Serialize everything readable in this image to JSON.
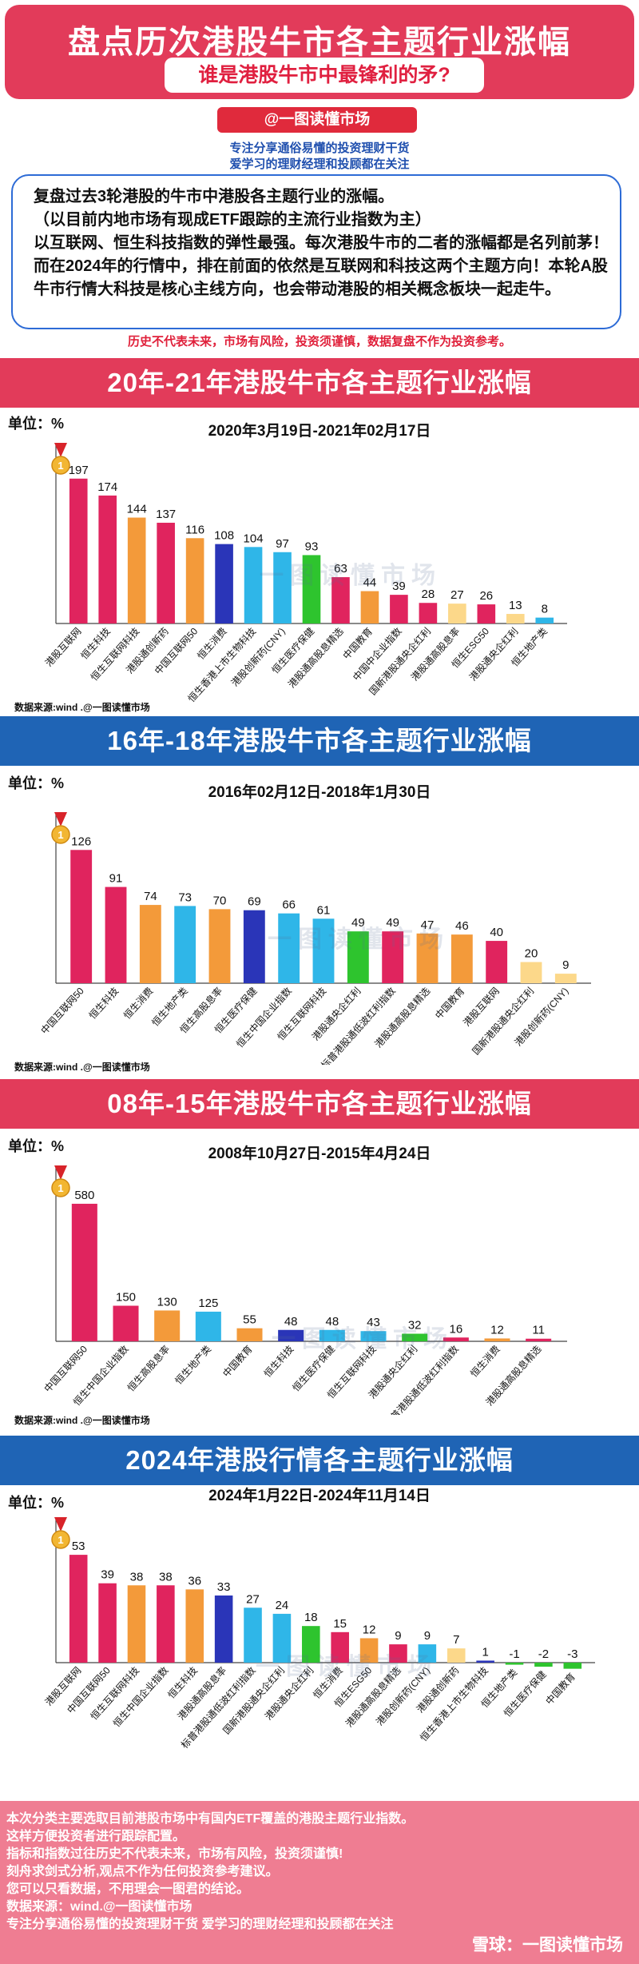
{
  "header": {
    "title": "盘点历次港股牛市各主题行业涨幅",
    "subtitle": "谁是港股牛市中最锋利的矛?"
  },
  "handle": "@一图读懂市场",
  "taglines": [
    "专注分享通俗易懂的投资理财干货",
    "爱学习的理财经理和投顾都在关注"
  ],
  "intro": [
    "复盘过去3轮港股的牛市中港股各主题行业的涨幅。",
    "（以目前内地市场有现成ETF跟踪的主流行业指数为主）",
    "以互联网、恒生科技指数的弹性最强。每次港股牛市的二者的涨幅都是名列前茅！ 而在2024年的行情中，排在前面的依然是互联网和科技这两个主题方向！本轮A股牛市行情大科技是核心主线方向，也会带动港股的相关概念板块一起走牛。"
  ],
  "disclaimer": "历史不代表未来，市场有风险，投资须谨慎，数据复盘不作为投资参考。",
  "watermark_text": "一图读懂市场",
  "medal_number": "1",
  "sections": [
    {
      "title": "20年-21年港股牛市各主题行业涨幅",
      "unit": "单位：%",
      "dates": "2020年3月19日-2021年02月17日",
      "source": "数据来源:wind .@一图读懂市场"
    },
    {
      "title": "16年-18年港股牛市各主题行业涨幅",
      "unit": "单位：%",
      "dates": "2016年02月12日-2018年1月30日",
      "source": "数据来源:wind .@一图读懂市场"
    },
    {
      "title": "08年-15年港股牛市各主题行业涨幅",
      "unit": "单位：%",
      "dates": "2008年10月27日-2015年4月24日",
      "source": "数据来源:wind .@一图读懂市场"
    },
    {
      "title": "2024年港股行情各主题行业涨幅",
      "unit": "单位：%",
      "dates": "2024年1月22日-2024年11月14日",
      "source": ""
    }
  ],
  "chart_data": [
    {
      "type": "bar",
      "title": "20年-21年港股牛市各主题行业涨幅",
      "ylabel": "单位：%",
      "ylim": [
        0,
        200
      ],
      "categories": [
        "港股互联网",
        "恒生科技",
        "恒生互联网科技",
        "港股通创新药",
        "中国互联网50",
        "恒生消费",
        "恒生香港上市生物科技",
        "港股创新药(CNY)",
        "恒生医疗保健",
        "港股通高股息精选",
        "中国教育",
        "中国中企业指数",
        "国新港股通央企红利",
        "港股通高股息率",
        "恒生ESG50",
        "港股通央企红利",
        "恒生地产类"
      ],
      "values": [
        197,
        174,
        144,
        137,
        116,
        108,
        104,
        97,
        93,
        63,
        44,
        39,
        28,
        27,
        26,
        13,
        8
      ],
      "colors": [
        "#e0245e",
        "#e0245e",
        "#f39a3a",
        "#e0245e",
        "#f39a3a",
        "#2a35b8",
        "#2fb6e8",
        "#2fb6e8",
        "#2ec42e",
        "#e0245e",
        "#f39a3a",
        "#e0245e",
        "#e0245e",
        "#fcd88a",
        "#e0245e",
        "#fcd88a",
        "#2fb6e8"
      ]
    },
    {
      "type": "bar",
      "title": "16年-18年港股牛市各主题行业涨幅",
      "ylabel": "单位：%",
      "ylim": [
        0,
        130
      ],
      "categories": [
        "中国互联网50",
        "恒生科技",
        "恒生消费",
        "恒生地产类",
        "恒生高股息率",
        "恒生医疗保健",
        "恒生中国企业指数",
        "恒生互联网科技",
        "港股通央企红利",
        "标普港股通低波红利指数",
        "港股通高股息精选",
        "中国教育",
        "港股互联网",
        "国新港股通央企红利",
        "港股创新药(CNY)"
      ],
      "values": [
        126,
        91,
        74,
        73,
        70,
        69,
        66,
        61,
        49,
        49,
        47,
        46,
        40,
        20,
        9
      ],
      "colors": [
        "#e0245e",
        "#e0245e",
        "#f39a3a",
        "#2fb6e8",
        "#f39a3a",
        "#2a35b8",
        "#2fb6e8",
        "#2fb6e8",
        "#2ec42e",
        "#e0245e",
        "#f39a3a",
        "#f39a3a",
        "#e0245e",
        "#fcd88a",
        "#fcd88a"
      ]
    },
    {
      "type": "bar",
      "title": "08年-15年港股牛市各主题行业涨幅",
      "ylabel": "单位：%",
      "ylim": [
        0,
        600
      ],
      "categories": [
        "中国互联网50",
        "恒生中国企业指数",
        "恒生高股息率",
        "恒生地产类",
        "中国教育",
        "恒生科技",
        "恒生医疗保健",
        "恒生互联网科技",
        "港股通央企红利",
        "标普港股通低波红利指数",
        "恒生消费",
        "港股通高股息精选"
      ],
      "values": [
        580,
        150,
        130,
        125,
        55,
        48,
        48,
        43,
        32,
        16,
        12,
        11
      ],
      "colors": [
        "#e0245e",
        "#e0245e",
        "#f39a3a",
        "#2fb6e8",
        "#f39a3a",
        "#2a35b8",
        "#2fb6e8",
        "#2fb6e8",
        "#2ec42e",
        "#e0245e",
        "#f39a3a",
        "#e0245e"
      ]
    },
    {
      "type": "bar",
      "title": "2024年港股行情各主题行业涨幅",
      "ylabel": "单位：%",
      "ylim": [
        -5,
        55
      ],
      "categories": [
        "港股互联网",
        "中国互联网50",
        "恒生互联网科技",
        "恒生中国企业指数",
        "恒生科技",
        "港股通高股息率",
        "标普港股通低波红利指数",
        "国新港股通央企红利",
        "港股通央企红利",
        "恒生消费",
        "恒生ESG50",
        "港股通高股息精选",
        "港股创新药(CNY)",
        "港股通创新药",
        "恒生香港上市生物科技",
        "恒生地产类",
        "恒生医疗保健",
        "中国教育"
      ],
      "values": [
        53,
        39,
        38,
        38,
        36,
        33,
        27,
        24,
        18,
        15,
        12,
        9,
        9,
        7,
        1,
        -1,
        -2,
        -3
      ],
      "colors": [
        "#e0245e",
        "#e0245e",
        "#f39a3a",
        "#e0245e",
        "#f39a3a",
        "#2a35b8",
        "#2fb6e8",
        "#2fb6e8",
        "#2ec42e",
        "#e0245e",
        "#f39a3a",
        "#e0245e",
        "#2fb6e8",
        "#fcd88a",
        "#2a35b8",
        "#2ec42e",
        "#2ec42e",
        "#2ec42e"
      ]
    }
  ],
  "bottom": {
    "lines": [
      "本次分类主要选取目前港股市场中有国内ETF覆盖的港股主题行业指数。",
      "这样方便投资者进行跟踪配置。",
      "指标和指数过往历史不代表未来，市场有风险，投资须谨慎!",
      "刻舟求剑式分析,观点不作为任何投资参考建议。",
      "您可以只看数据，不用理会一图君的结论。",
      "数据来源：wind.@一图读懂市场",
      "专注分享通俗易懂的投资理财干货     爱学习的理财经理和投顾都在关注"
    ],
    "corner_mark": "雪球：一图读懂市场"
  }
}
